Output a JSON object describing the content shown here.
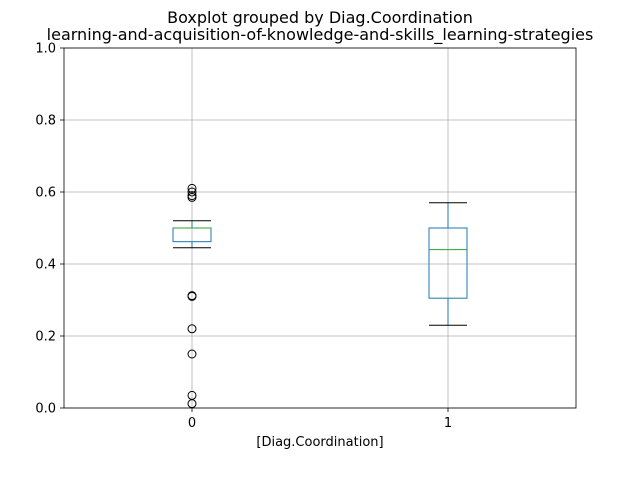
{
  "chart_data": {
    "type": "boxplot",
    "suptitle": "Boxplot grouped by Diag.Coordination",
    "title": "learning-and-acquisition-of-knowledge-and-skills_learning-strategies",
    "xlabel": "[Diag.Coordination]",
    "ylabel": "",
    "ylim": [
      0,
      1
    ],
    "yticks": [
      "0.0",
      "0.2",
      "0.4",
      "0.6",
      "0.8",
      "1.0"
    ],
    "ytick_values": [
      0,
      0.2,
      0.4,
      0.6,
      0.8,
      1.0
    ],
    "categories": [
      "0",
      "1"
    ],
    "grid": true,
    "boxes": [
      {
        "category": "0",
        "whisker_low": 0.445,
        "q1": 0.462,
        "median": 0.5,
        "q3": 0.5,
        "whisker_high": 0.52,
        "outliers": [
          0.012,
          0.035,
          0.15,
          0.22,
          0.31,
          0.312,
          0.585,
          0.59,
          0.6,
          0.61
        ]
      },
      {
        "category": "1",
        "whisker_low": 0.23,
        "q1": 0.305,
        "median": 0.44,
        "q3": 0.5,
        "whisker_high": 0.57,
        "outliers": []
      }
    ],
    "colors": {
      "box": "#1f77b4",
      "median": "#2ca02c",
      "whisker_cap": "#000000",
      "grid": "#b0b0b0",
      "axes": "#000000"
    }
  }
}
